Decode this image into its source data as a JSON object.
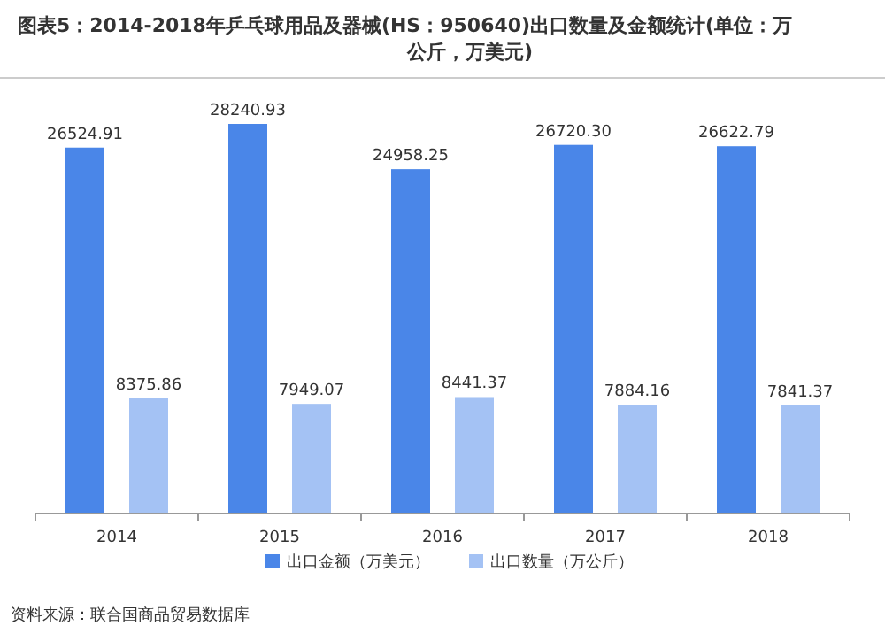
{
  "chart_data": {
    "type": "bar",
    "title": "图表5：2014-2018年乒乓球用品及器械(HS：950640)出口数量及金额统计(单位：万公斤，万美元)",
    "categories": [
      "2014",
      "2015",
      "2016",
      "2017",
      "2018"
    ],
    "series": [
      {
        "name": "出口金额（万美元）",
        "color": "#4a86e8",
        "values": [
          26524.91,
          28240.93,
          24958.25,
          26720.3,
          26622.79
        ],
        "value_labels": [
          "26524.91",
          "28240.93",
          "24958.25",
          "26720.30",
          "26622.79"
        ]
      },
      {
        "name": "出口数量（万公斤）",
        "color": "#a4c2f4",
        "values": [
          8375.86,
          7949.07,
          8441.37,
          7884.16,
          7841.37
        ]
      }
    ],
    "data_labels": true,
    "legend": "bottom",
    "annotations": [
      "资料来源：联合国商品贸易数据库"
    ]
  }
}
